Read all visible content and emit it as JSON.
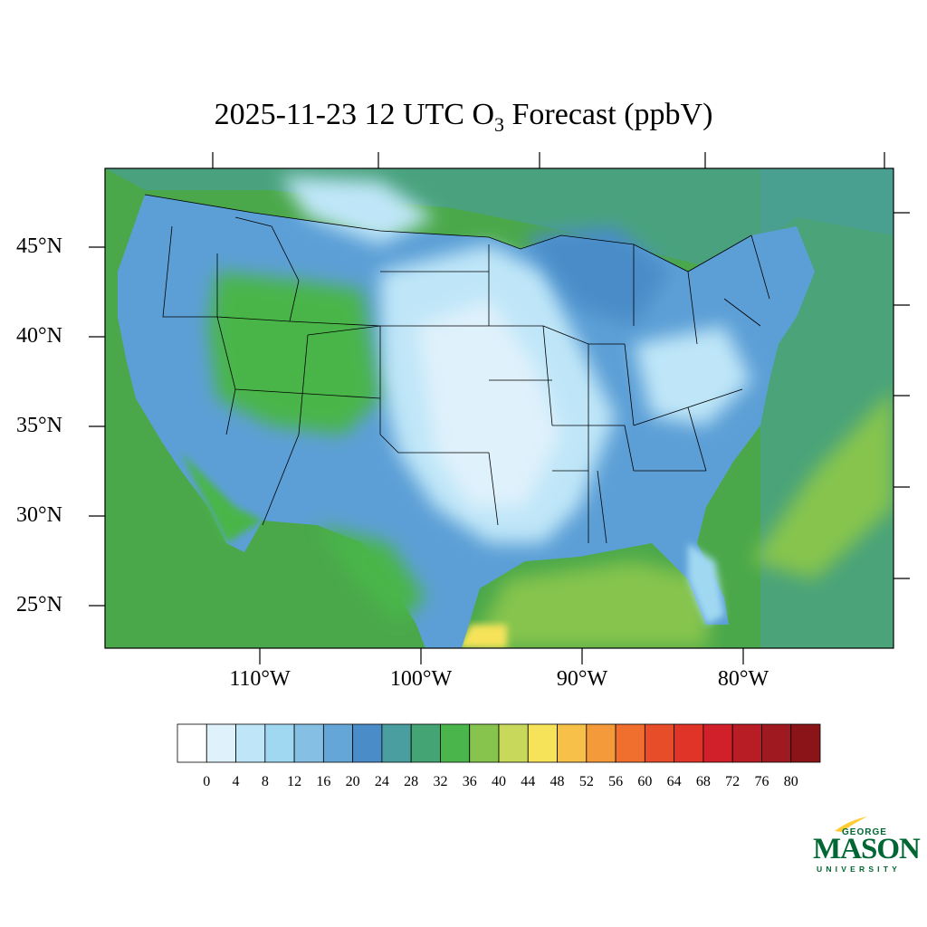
{
  "title": {
    "prefix": "2025-11-23 12 UTC O",
    "subscript": "3",
    "suffix": " Forecast (ppbV)"
  },
  "map": {
    "lat_labels": [
      "45°N",
      "40°N",
      "35°N",
      "30°N",
      "25°N"
    ],
    "lon_labels": [
      "110°W",
      "100°W",
      "90°W",
      "80°W"
    ],
    "ocean_color": "#4aa84a",
    "land_color": "#5c9fd6"
  },
  "colorbar": {
    "labels": [
      "0",
      "4",
      "8",
      "12",
      "16",
      "20",
      "24",
      "28",
      "32",
      "36",
      "40",
      "44",
      "48",
      "52",
      "56",
      "60",
      "64",
      "68",
      "72",
      "76",
      "80"
    ],
    "colors": [
      "#ffffff",
      "#dff1fb",
      "#bfe6f8",
      "#a0d8f2",
      "#85bfe4",
      "#65a6d8",
      "#4a8cc8",
      "#4a9ea0",
      "#44a473",
      "#4ab54a",
      "#86c44e",
      "#c7d85a",
      "#f6e35a",
      "#f7c049",
      "#f59a3b",
      "#f06e2e",
      "#e84d2a",
      "#e03428",
      "#d2202a",
      "#b81c24",
      "#9e1a20",
      "#8a1418"
    ]
  },
  "logo": {
    "line1": "GEORGE",
    "line2": "MASON",
    "line3": "UNIVERSITY"
  }
}
